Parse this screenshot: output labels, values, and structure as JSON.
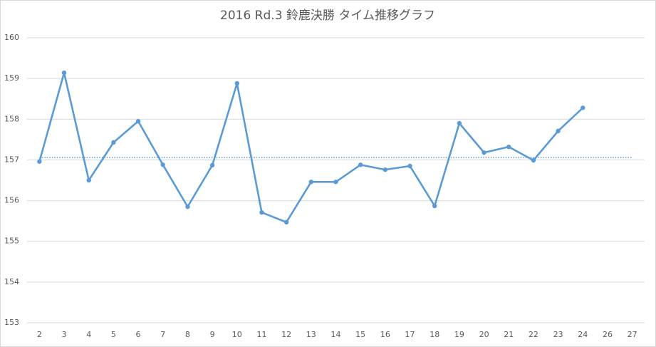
{
  "chart_data": {
    "type": "line",
    "title": "2016 Rd.3 鈴鹿決勝 タイム推移グラフ",
    "categories": [
      "2",
      "3",
      "4",
      "5",
      "6",
      "7",
      "8",
      "9",
      "10",
      "11",
      "12",
      "13",
      "14",
      "15",
      "16",
      "17",
      "18",
      "19",
      "20",
      "21",
      "22",
      "23",
      "24",
      "26",
      "27"
    ],
    "series": [
      {
        "color": "#5b9bd5",
        "values": [
          156.96,
          159.14,
          156.5,
          157.43,
          157.95,
          156.88,
          155.85,
          156.87,
          158.88,
          155.71,
          155.47,
          156.46,
          156.46,
          156.88,
          156.76,
          156.85,
          155.87,
          157.9,
          157.18,
          157.32,
          156.99,
          157.71,
          158.28,
          null,
          null
        ]
      }
    ],
    "reference_line": 157.06,
    "ylim": [
      153,
      160
    ],
    "yticks": [
      153,
      154,
      155,
      156,
      157,
      158,
      159,
      160
    ],
    "grid": true
  }
}
